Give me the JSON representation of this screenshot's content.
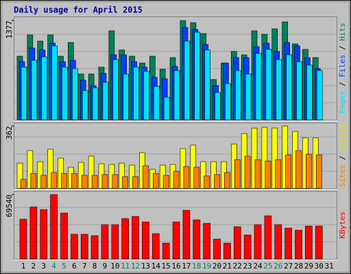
{
  "chart_data": {
    "type": "bar",
    "title": "Daily usage for April 2015",
    "categories": [
      "1",
      "2",
      "3",
      "4",
      "5",
      "6",
      "7",
      "8",
      "9",
      "10",
      "11",
      "12",
      "13",
      "14",
      "15",
      "16",
      "17",
      "18",
      "19",
      "20",
      "21",
      "22",
      "23",
      "24",
      "25",
      "26",
      "27",
      "28",
      "29",
      "30",
      "31"
    ],
    "category_colors": [
      "#000000",
      "#000000",
      "#000000",
      "#00805c",
      "#00805c",
      "#000000",
      "#000000",
      "#000000",
      "#000000",
      "#000000",
      "#00805c",
      "#00805c",
      "#000000",
      "#000000",
      "#000000",
      "#000000",
      "#000000",
      "#00805c",
      "#00805c",
      "#000000",
      "#000000",
      "#000000",
      "#000000",
      "#000000",
      "#00805c",
      "#00805c",
      "#000000",
      "#000000",
      "#000000",
      "#000000",
      "#000000"
    ],
    "legend_separator": " / ",
    "panels": [
      {
        "ylim": [
          0,
          1377
        ],
        "yticks": [
          1377
        ],
        "series": [
          {
            "name": "Hits",
            "color": "#00805c",
            "values": [
              883,
              1178,
              1092,
              1178,
              883,
              1073,
              636,
              636,
              731,
              1235,
              969,
              883,
              788,
              883,
              703,
              864,
              1377,
              1348,
              1197,
              560,
              788,
              950,
              902,
              1235,
              1187,
              1263,
              1358,
              1054,
              978,
              864,
              null
            ]
          },
          {
            "name": "Files",
            "color": "#0040ff",
            "values": [
              807,
              997,
              969,
              1064,
              807,
              826,
              551,
              475,
              646,
              902,
              902,
              807,
              731,
              589,
              570,
              741,
              1282,
              1254,
              1045,
              475,
              788,
              864,
              864,
              1016,
              1064,
              950,
              1073,
              1026,
              864,
              712,
              null
            ]
          },
          {
            "name": "Pages",
            "color": "#00e0ff",
            "values": [
              731,
              826,
              874,
              1026,
              731,
              712,
              408,
              446,
              522,
              836,
              636,
              731,
              674,
              465,
              313,
              684,
              1092,
              1216,
              969,
              380,
              503,
              684,
              636,
              921,
              978,
              836,
              902,
              807,
              760,
              684,
              null
            ]
          }
        ]
      },
      {
        "ylim": [
          0,
          362
        ],
        "yticks": [
          362
        ],
        "series": [
          {
            "name": "Visits",
            "color": "#ffff00",
            "values": [
              147,
              219,
              155,
              227,
              175,
              123,
              151,
              187,
              143,
              139,
              147,
              135,
              207,
              111,
              135,
              139,
              231,
              251,
              155,
              155,
              155,
              258,
              318,
              350,
              354,
              350,
              362,
              330,
              294,
              294,
              null
            ]
          },
          {
            "name": "Sites",
            "color": "#ff8000",
            "values": [
              52,
              87,
              76,
              92,
              87,
              87,
              76,
              76,
              80,
              80,
              68,
              68,
              131,
              87,
              76,
              99,
              127,
              123,
              72,
              80,
              92,
              167,
              187,
              167,
              159,
              167,
              195,
              219,
              199,
              195,
              null
            ]
          }
        ]
      },
      {
        "ylim": [
          0,
          69540
        ],
        "yticks": [
          69540
        ],
        "series": [
          {
            "name": "KBytes",
            "color": "#ff0000",
            "values": [
              42908,
              56225,
              53265,
              69540,
              49566,
              26632,
              26632,
              25153,
              36989,
              36989,
              43648,
              45867,
              39949,
              27372,
              17015,
              39949,
              52525,
              42168,
              38469,
              21454,
              17015,
              34770,
              25893,
              36989,
              46607,
              36989,
              33291,
              31071,
              35510,
              35510,
              null
            ]
          }
        ]
      }
    ]
  }
}
